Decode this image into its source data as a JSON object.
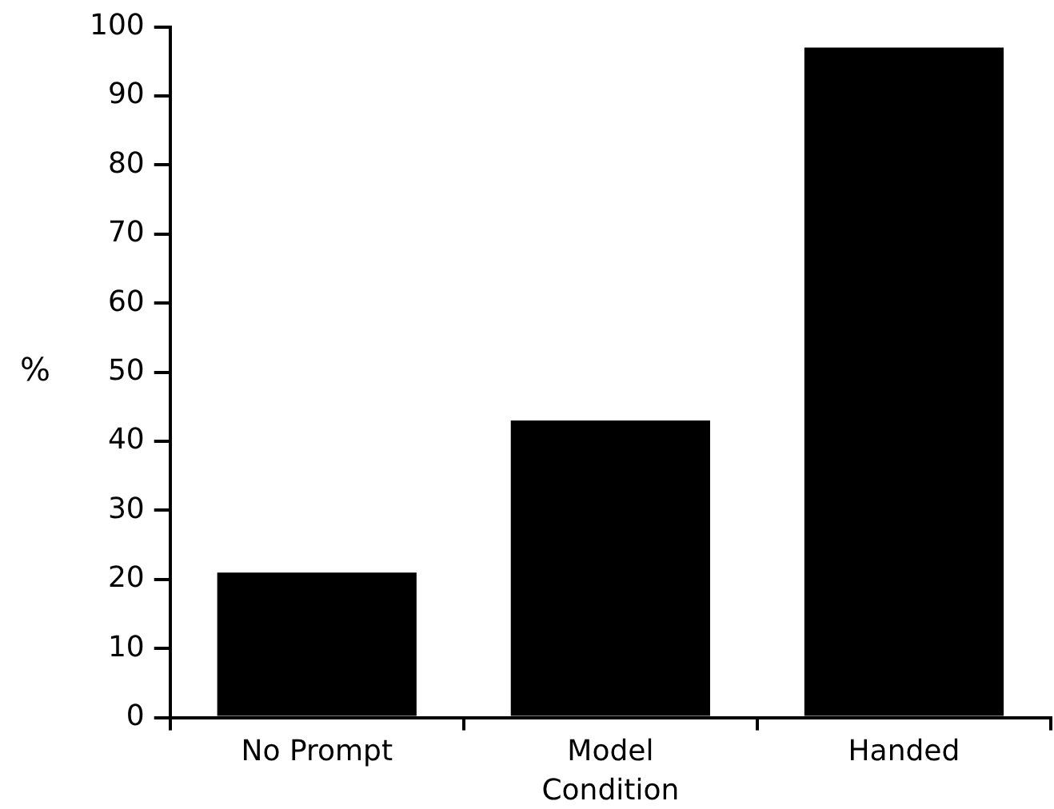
{
  "chart_data": {
    "type": "bar",
    "xlabel": "Condition",
    "ylabel": "%",
    "categories": [
      "No Prompt",
      "Model",
      "Handed"
    ],
    "values": [
      21,
      43,
      97
    ],
    "color": "#000000",
    "ylim": [
      0,
      100
    ],
    "yticks": [
      0,
      10,
      20,
      30,
      40,
      50,
      60,
      70,
      80,
      90,
      100
    ],
    "grid": false,
    "legend": false
  }
}
